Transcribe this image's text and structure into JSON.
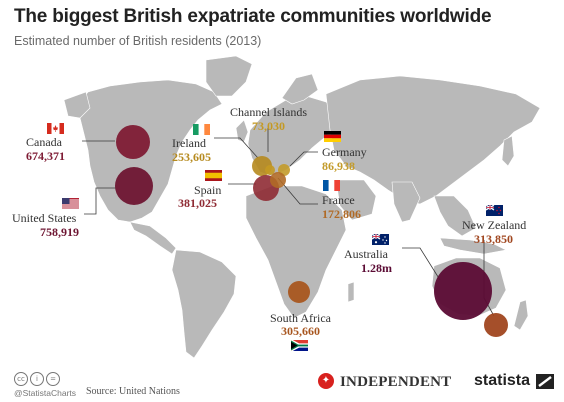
{
  "title": "The biggest British expatriate communities worldwide",
  "subtitle": "Estimated number of British residents (2013)",
  "colors": {
    "land": "#b9b9b9",
    "connector": "#3a3a3a",
    "canada": "#7e1b34",
    "usa": "#6e1532",
    "australia": "#5b0b34",
    "ireland": "#b68a1e",
    "channel_islands": "#c49922",
    "germany": "#c39b2a",
    "france": "#b06a26",
    "spain": "#8f2b34",
    "south_africa": "#a8561f",
    "new_zealand": "#a0461f"
  },
  "communities": [
    {
      "id": "canada",
      "name": "Canada",
      "value": "674,371",
      "number": 674371
    },
    {
      "id": "usa",
      "name": "United States",
      "value": "758,919",
      "number": 758919
    },
    {
      "id": "ireland",
      "name": "Ireland",
      "value": "253,605",
      "number": 253605
    },
    {
      "id": "channel_islands",
      "name": "Channel Islands",
      "value": "73,030",
      "number": 73030
    },
    {
      "id": "germany",
      "name": "Germany",
      "value": "86,938",
      "number": 86938
    },
    {
      "id": "spain",
      "name": "Spain",
      "value": "381,025",
      "number": 381025
    },
    {
      "id": "france",
      "name": "France",
      "value": "172,806",
      "number": 172806
    },
    {
      "id": "australia",
      "name": "Australia",
      "value": "1.28m",
      "number": 1280000
    },
    {
      "id": "new_zealand",
      "name": "New Zealand",
      "value": "313,850",
      "number": 313850
    },
    {
      "id": "south_africa",
      "name": "South Africa",
      "value": "305,660",
      "number": 305660
    }
  ],
  "footer": {
    "handle": "@StatistaCharts",
    "source": "Source: United Nations",
    "partner": "INDEPENDENT",
    "brand": "statista"
  }
}
